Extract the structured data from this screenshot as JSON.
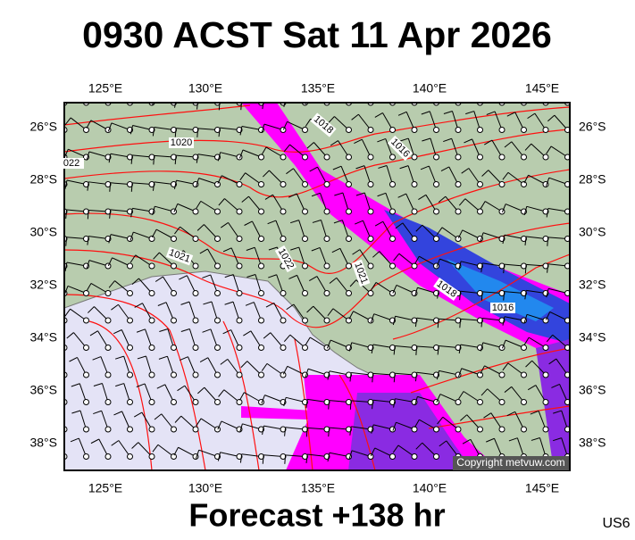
{
  "header": {
    "title": "0930 ACST Sat 11 Apr 2026"
  },
  "axes": {
    "top": [
      "125°E",
      "130°E",
      "135°E",
      "140°E",
      "145°E"
    ],
    "bottom": [
      "125°E",
      "130°E",
      "135°E",
      "140°E",
      "145°E"
    ],
    "left": [
      "26°S",
      "28°S",
      "30°S",
      "32°S",
      "34°S",
      "36°S",
      "38°S"
    ],
    "right": [
      "26°S",
      "28°S",
      "30°S",
      "32°S",
      "34°S",
      "36°S",
      "38°S"
    ]
  },
  "isobar_labels": [
    "1020",
    "1018",
    "1016",
    "022",
    "1021",
    "1022",
    "1021",
    "1018",
    "1016"
  ],
  "copyright": "Copyright metvuw.com",
  "footer": {
    "forecast": "Forecast +138 hr",
    "code": "US6"
  }
}
